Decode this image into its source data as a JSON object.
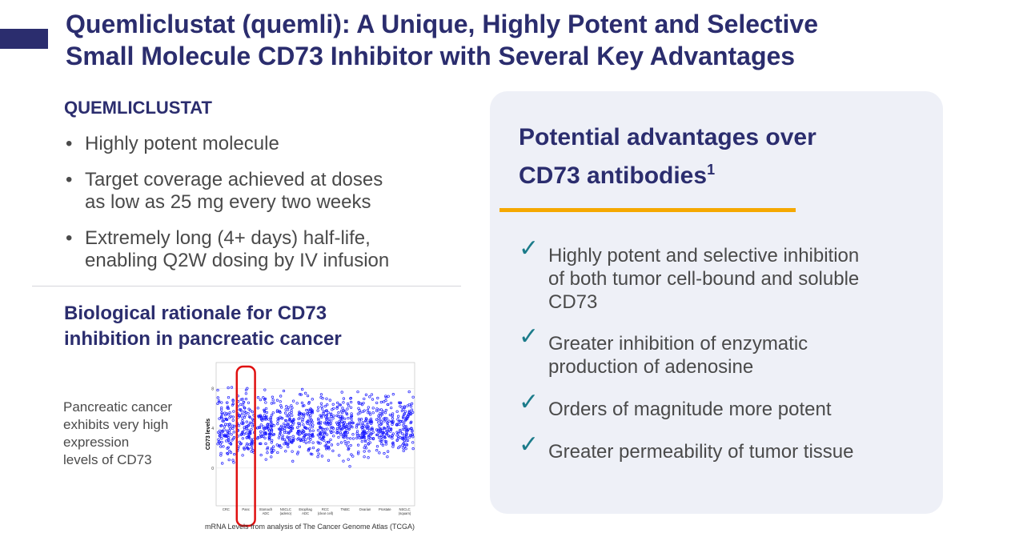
{
  "header": {
    "title_lines": [
      "Quemliclustat (quemli): A Unique, Highly Potent and Selective",
      "Small Molecule CD73 Inhibitor with Several Key Advantages"
    ]
  },
  "left": {
    "heading": "QUEMLICLUSTAT",
    "bullets": [
      [
        "Highly potent molecule"
      ],
      [
        "Target coverage achieved at doses",
        "as low as 25 mg every two weeks"
      ],
      [
        "Extremely long (4+ days) half-life,",
        "enabling Q2W dosing by IV infusion"
      ]
    ],
    "subheading_lines": [
      "Biological rationale for CD73",
      "inhibition in pancreatic cancer"
    ],
    "caption_lines": [
      "Pancreatic cancer",
      "exhibits very high",
      "expression",
      "levels of CD73"
    ]
  },
  "chart_data": {
    "type": "strip",
    "ylabel": "CD73 levels",
    "categories": [
      [
        "CRC"
      ],
      [
        "Panc"
      ],
      [
        "Stomach",
        "ADC"
      ],
      [
        "NSCLC",
        "(adeno)"
      ],
      [
        "Esophag",
        "ADC"
      ],
      [
        "RCC",
        "(clear cell)"
      ],
      [
        "TNBC"
      ],
      [
        "Ovarian"
      ],
      [
        "Prostate"
      ],
      [
        "NSCLC",
        "(squam)"
      ]
    ],
    "ylim": [
      -3.8,
      10.6
    ],
    "yticks": [
      0,
      4,
      8
    ],
    "highlight_category": 1,
    "source": "mRNA Levels from analysis of The Cancer Genome Atlas (TCGA)"
  },
  "right": {
    "title_lines": [
      "Potential advantages over",
      "CD73 antibodies"
    ],
    "title_superscript": "1",
    "items": [
      [
        "Highly potent and selective inhibition",
        "of both tumor cell-bound and soluble",
        "CD73"
      ],
      [
        "Greater inhibition of enzymatic",
        "production of adenosine"
      ],
      [
        "Orders of magnitude more potent"
      ],
      [
        "Greater permeability of tumor tissue"
      ]
    ]
  }
}
